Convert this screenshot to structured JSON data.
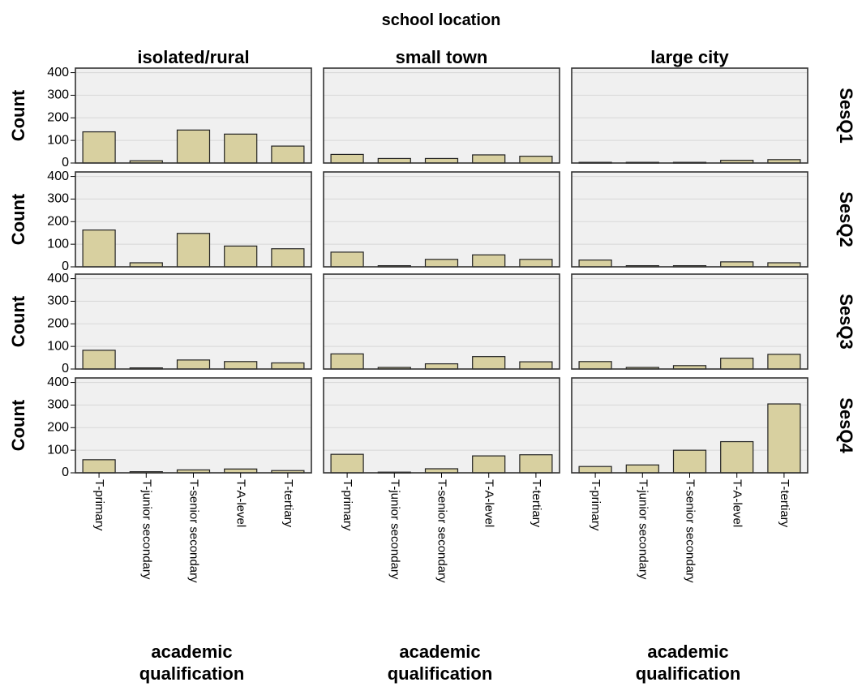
{
  "chart_data": {
    "type": "bar",
    "title": "school location",
    "columns": [
      "isolated/rural",
      "small town",
      "large city"
    ],
    "rows": [
      "SesQ1",
      "SesQ2",
      "SesQ3",
      "SesQ4"
    ],
    "categories": [
      "T-primary",
      "T-junior secondary",
      "T-senior secondary",
      "T-A-level",
      "T-tertiary"
    ],
    "ylabel": "Count",
    "xlabel": "academic qualification",
    "ylim": [
      0,
      420
    ],
    "yticks": [
      0,
      100,
      200,
      300,
      400
    ],
    "grid": true,
    "bar_color": "#d8d0a0",
    "panel_bg": "#f0f0f0",
    "panels": [
      {
        "row": "SesQ1",
        "column": "isolated/rural",
        "values": [
          138,
          10,
          146,
          128,
          75
        ]
      },
      {
        "row": "SesQ1",
        "column": "small town",
        "values": [
          38,
          20,
          20,
          36,
          30
        ]
      },
      {
        "row": "SesQ1",
        "column": "large city",
        "values": [
          3,
          3,
          3,
          12,
          15
        ]
      },
      {
        "row": "SesQ2",
        "column": "isolated/rural",
        "values": [
          163,
          18,
          148,
          92,
          80
        ]
      },
      {
        "row": "SesQ2",
        "column": "small town",
        "values": [
          65,
          5,
          33,
          53,
          33
        ]
      },
      {
        "row": "SesQ2",
        "column": "large city",
        "values": [
          30,
          5,
          5,
          22,
          18
        ]
      },
      {
        "row": "SesQ3",
        "column": "isolated/rural",
        "values": [
          83,
          5,
          40,
          33,
          27
        ]
      },
      {
        "row": "SesQ3",
        "column": "small town",
        "values": [
          67,
          7,
          23,
          55,
          32
        ]
      },
      {
        "row": "SesQ3",
        "column": "large city",
        "values": [
          33,
          7,
          15,
          48,
          65
        ]
      },
      {
        "row": "SesQ4",
        "column": "isolated/rural",
        "values": [
          58,
          5,
          13,
          17,
          10
        ]
      },
      {
        "row": "SesQ4",
        "column": "small town",
        "values": [
          82,
          3,
          18,
          75,
          80
        ]
      },
      {
        "row": "SesQ4",
        "column": "large city",
        "values": [
          28,
          35,
          100,
          138,
          305
        ]
      }
    ]
  }
}
